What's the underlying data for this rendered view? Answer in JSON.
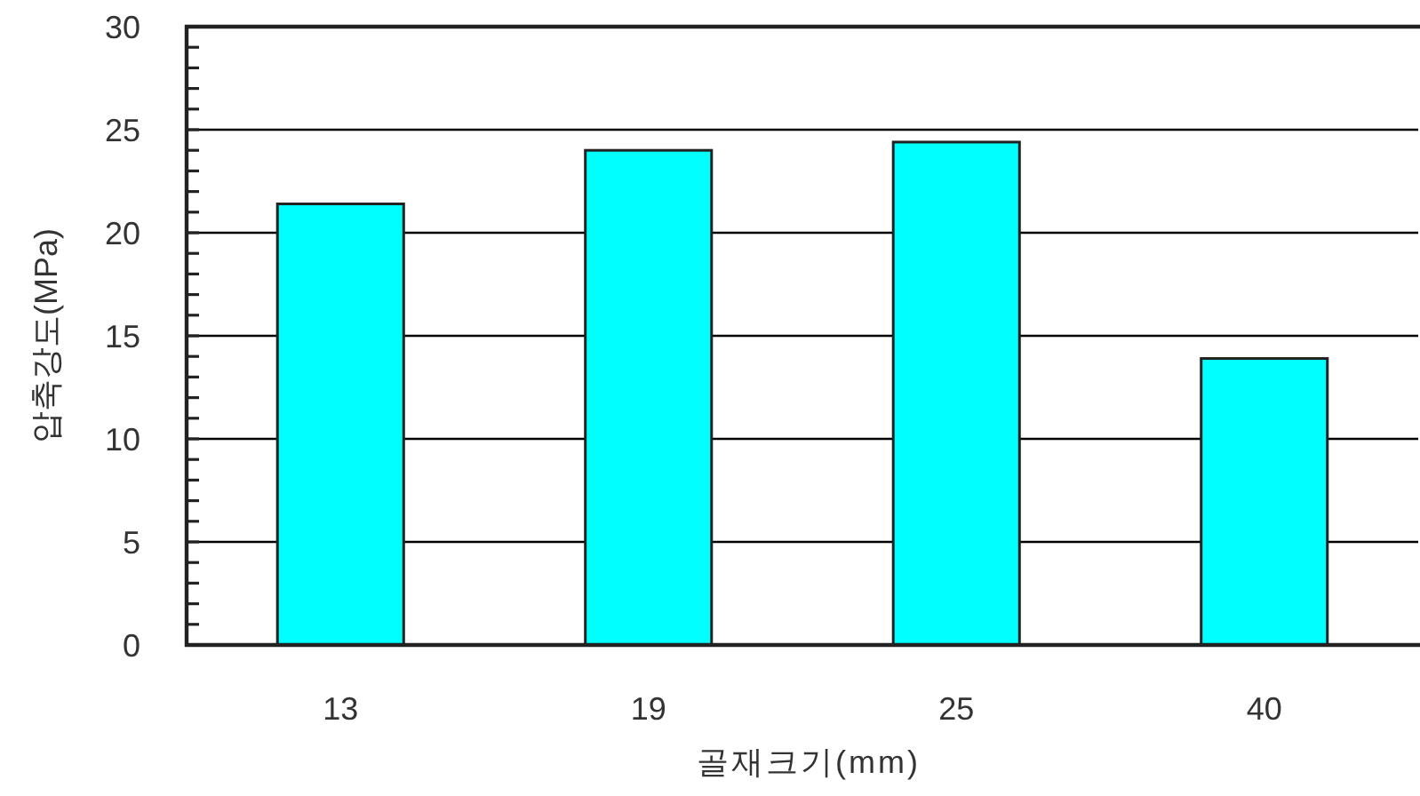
{
  "chart_data": {
    "type": "bar",
    "xlabel": "골재크기(mm)",
    "ylabel": "압축강도(MPa)",
    "categories": [
      "13",
      "19",
      "25",
      "40"
    ],
    "values": [
      21.4,
      24.0,
      24.4,
      13.9
    ],
    "color": "#00ffff",
    "ylim": [
      0,
      30
    ],
    "yticks": [
      0,
      {
        "value": 1,
        "label": null
      },
      {
        "value": 2,
        "label": null
      },
      {
        "value": 3,
        "label": null
      },
      {
        "value": 4,
        "label": null
      },
      5,
      {
        "value": 6,
        "label": null
      },
      {
        "value": 7,
        "label": null
      },
      {
        "value": 8,
        "label": null
      },
      {
        "value": 9,
        "label": null
      },
      10,
      {
        "value": 11,
        "label": null
      },
      {
        "value": 12,
        "label": null
      },
      {
        "value": 13,
        "label": null
      },
      {
        "value": 14,
        "label": null
      },
      15,
      {
        "value": 16,
        "label": null
      },
      {
        "value": 17,
        "label": null
      },
      {
        "value": 18,
        "label": null
      },
      {
        "value": 19,
        "label": null
      },
      20,
      {
        "value": 21,
        "label": null
      },
      {
        "value": 22,
        "label": null
      },
      {
        "value": 23,
        "label": null
      },
      {
        "value": 24,
        "label": null
      },
      25,
      {
        "value": 26,
        "label": null
      },
      {
        "value": 27,
        "label": null
      },
      {
        "value": 28,
        "label": null
      },
      {
        "value": 29,
        "label": null
      },
      30
    ],
    "grid": "y"
  }
}
